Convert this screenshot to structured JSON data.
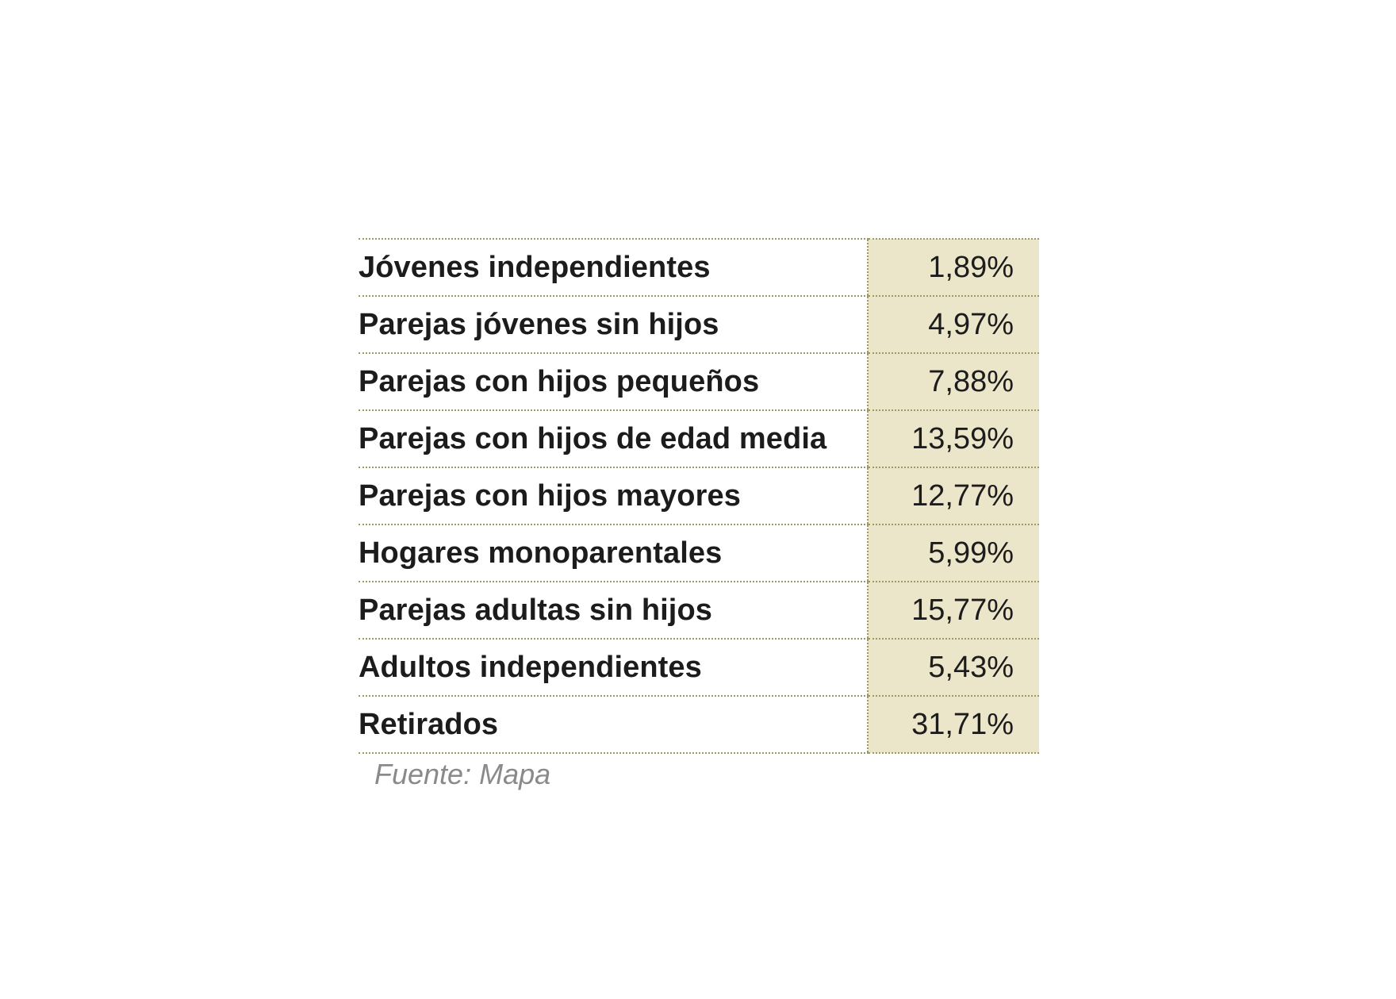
{
  "chart_data": {
    "type": "table",
    "rows": [
      {
        "label": "Jóvenes independientes",
        "value": 1.89,
        "display": "1,89%"
      },
      {
        "label": "Parejas jóvenes sin hijos",
        "value": 4.97,
        "display": "4,97%"
      },
      {
        "label": "Parejas con hijos pequeños",
        "value": 7.88,
        "display": "7,88%"
      },
      {
        "label": "Parejas con hijos de edad media",
        "value": 13.59,
        "display": "13,59%"
      },
      {
        "label": "Parejas con hijos mayores",
        "value": 12.77,
        "display": "12,77%"
      },
      {
        "label": "Hogares monoparentales",
        "value": 5.99,
        "display": "5,99%"
      },
      {
        "label": "Parejas adultas sin hijos",
        "value": 15.77,
        "display": "15,77%"
      },
      {
        "label": "Adultos independientes",
        "value": 5.43,
        "display": "5,43%"
      },
      {
        "label": "Retirados",
        "value": 31.71,
        "display": "31,71%"
      }
    ],
    "source": "Fuente: Mapa"
  },
  "colors": {
    "value_column_background": "#ebe6c9",
    "dotted_rule": "#9c9a63",
    "text": "#1c1c1c",
    "source_text": "#8a8a8a"
  }
}
